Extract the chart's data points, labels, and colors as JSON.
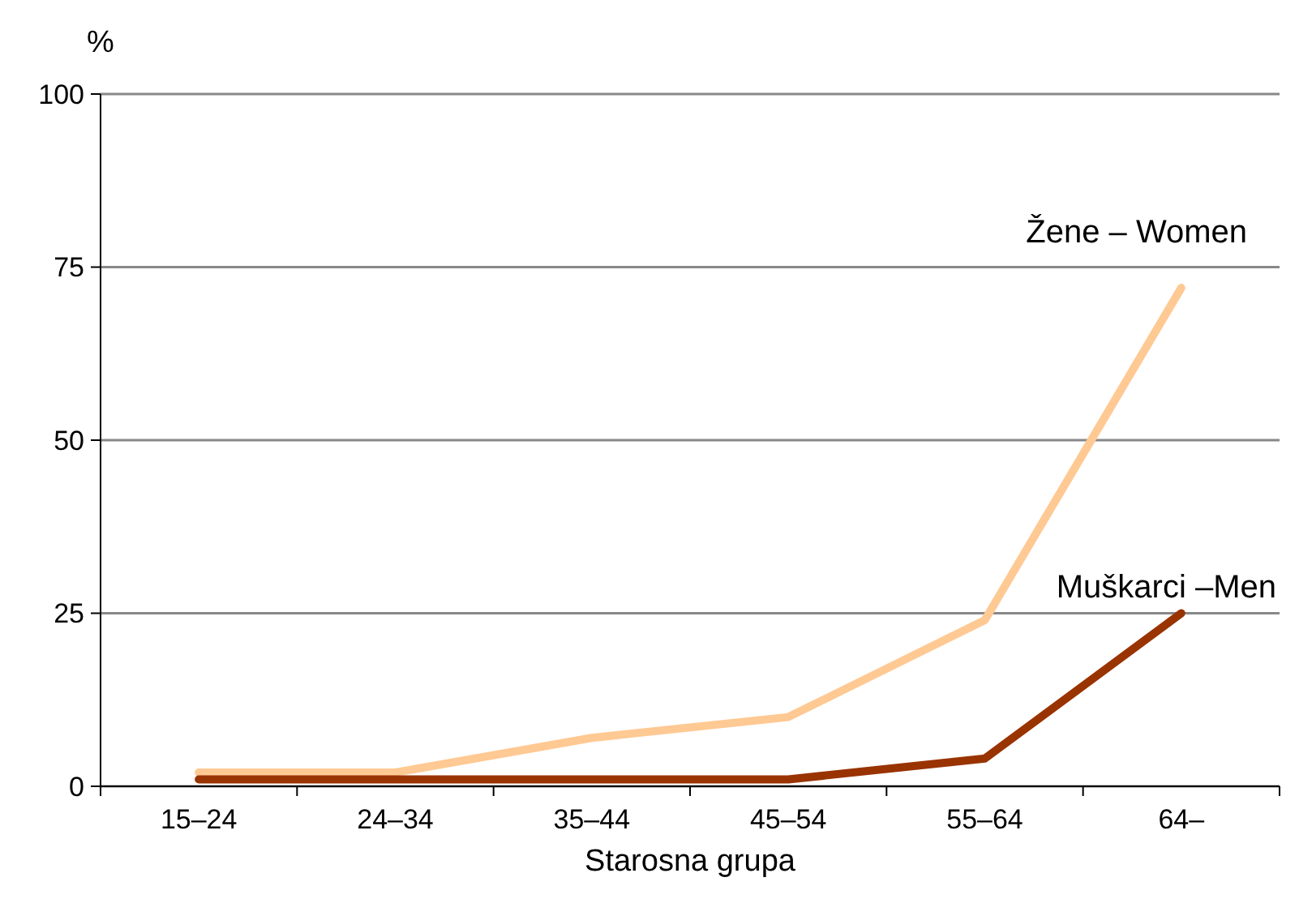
{
  "chart_data": {
    "type": "line",
    "ylabel": "%",
    "xlabel": "Starosna grupa",
    "categories": [
      "15–24",
      "24–34",
      "35–44",
      "45–54",
      "55–64",
      "64–"
    ],
    "series": [
      {
        "name": "Žene – Women",
        "color": "#ffc993",
        "values": [
          2,
          2,
          7,
          10,
          24,
          72
        ]
      },
      {
        "name": "Muškarci –Men",
        "color": "#993300",
        "values": [
          1,
          1,
          1,
          1,
          4,
          25
        ]
      }
    ],
    "ylim": [
      0,
      100
    ],
    "yticks": [
      0,
      25,
      50,
      75,
      100
    ],
    "grid": "y",
    "marker": "none",
    "line_style": "solid"
  }
}
